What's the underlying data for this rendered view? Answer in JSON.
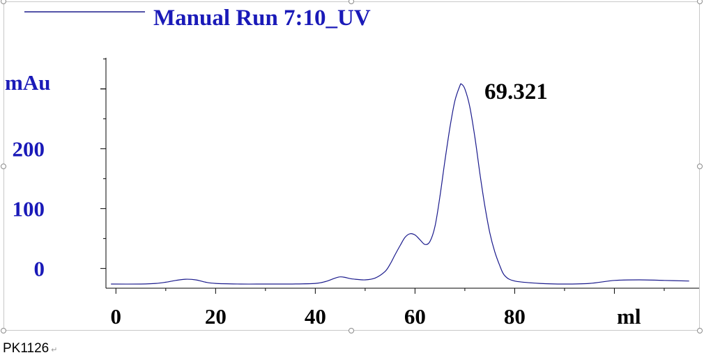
{
  "chart_data": {
    "type": "line",
    "title": "Manual Run 7:10_UV",
    "ylabel": "mAu",
    "xlabel": "ml",
    "x_ticks": [
      0,
      20,
      40,
      60,
      80
    ],
    "y_ticks": [
      0,
      100,
      200
    ],
    "xlim": [
      -2,
      117
    ],
    "ylim": [
      -33,
      352
    ],
    "grid": false,
    "legend": "top-left",
    "series": [
      {
        "name": "Manual Run 7:10_UV",
        "color": "#1a1a8c",
        "x": [
          -1,
          5,
          8,
          10,
          12,
          14,
          16,
          18,
          20,
          25,
          30,
          35,
          40,
          42,
          44,
          45,
          46,
          47,
          48,
          50,
          52,
          54,
          55,
          56,
          57,
          58,
          59,
          60,
          61,
          62,
          63,
          64,
          65,
          66,
          67,
          68,
          69,
          69.3,
          70,
          71,
          72,
          73,
          74,
          75,
          76,
          77,
          78,
          80,
          85,
          90,
          95,
          100,
          105,
          110,
          115
        ],
        "y": [
          -26,
          -26,
          -25,
          -23,
          -20,
          -18,
          -19,
          -23,
          -25,
          -26,
          -26,
          -26,
          -25,
          -22,
          -16,
          -14,
          -15,
          -17,
          -18,
          -19,
          -16,
          -5,
          7,
          23,
          38,
          52,
          58,
          56,
          48,
          40,
          45,
          70,
          120,
          180,
          235,
          280,
          305,
          308,
          300,
          270,
          220,
          160,
          105,
          60,
          28,
          5,
          -12,
          -21,
          -25,
          -26,
          -25,
          -20,
          -19,
          -20,
          -21
        ]
      }
    ],
    "annotations": [
      {
        "text": "69.321",
        "x": 69.321,
        "y": 308
      }
    ]
  },
  "caption": {
    "text": "PK1126"
  }
}
